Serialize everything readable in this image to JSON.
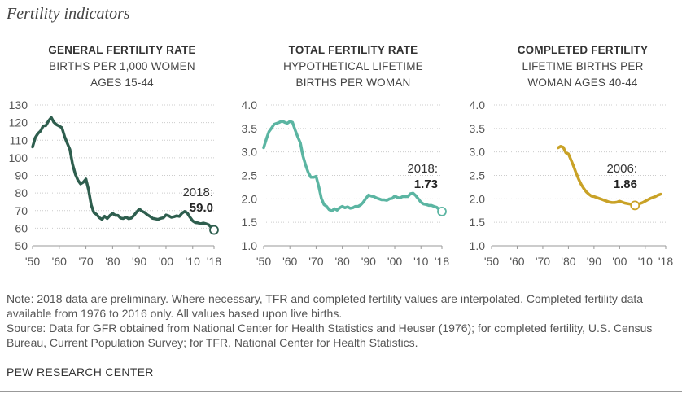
{
  "page_title": "Fertility indicators",
  "chart_data": [
    {
      "type": "line",
      "title": "GENERAL FERTILITY RATE",
      "subtitle_lines": [
        "BIRTHS PER 1,000 WOMEN",
        "AGES 15-44"
      ],
      "color": "#2e5e4e",
      "ylim": [
        50,
        130
      ],
      "yticks": [
        50,
        60,
        70,
        80,
        90,
        100,
        110,
        120,
        130
      ],
      "ytick_labels": [
        "50",
        "60",
        "70",
        "80",
        "90",
        "100",
        "110",
        "120",
        "130"
      ],
      "xlim": [
        1950,
        2018
      ],
      "xticks": [
        1950,
        1960,
        1970,
        1980,
        1990,
        2000,
        2010,
        2018
      ],
      "xtick_labels": [
        "'50",
        "'60",
        "'70",
        "'80",
        "'90",
        "'00",
        "'10",
        "'18"
      ],
      "grid": true,
      "x": [
        1950,
        1951,
        1952,
        1953,
        1954,
        1955,
        1956,
        1957,
        1958,
        1959,
        1960,
        1961,
        1962,
        1963,
        1964,
        1965,
        1966,
        1967,
        1968,
        1969,
        1970,
        1971,
        1972,
        1973,
        1974,
        1975,
        1976,
        1977,
        1978,
        1979,
        1980,
        1981,
        1982,
        1983,
        1984,
        1985,
        1986,
        1987,
        1988,
        1989,
        1990,
        1991,
        1992,
        1993,
        1994,
        1995,
        1996,
        1997,
        1998,
        1999,
        2000,
        2001,
        2002,
        2003,
        2004,
        2005,
        2006,
        2007,
        2008,
        2009,
        2010,
        2011,
        2012,
        2013,
        2014,
        2015,
        2016,
        2017,
        2018
      ],
      "y": [
        106.2,
        111.4,
        113.8,
        115.2,
        118.1,
        118.3,
        121.0,
        122.9,
        120.2,
        118.8,
        118.0,
        117.1,
        112.0,
        108.3,
        104.7,
        96.3,
        90.8,
        87.2,
        85.2,
        86.1,
        87.9,
        81.6,
        73.1,
        68.8,
        67.8,
        66.0,
        65.0,
        66.8,
        65.5,
        67.2,
        68.4,
        67.3,
        67.3,
        65.7,
        65.5,
        66.3,
        65.4,
        65.7,
        67.3,
        69.2,
        70.9,
        69.6,
        68.9,
        67.6,
        66.7,
        65.6,
        65.3,
        65.0,
        65.6,
        65.9,
        67.5,
        67.0,
        66.2,
        66.5,
        67.0,
        66.7,
        68.5,
        69.5,
        68.6,
        66.2,
        64.1,
        63.2,
        63.0,
        62.5,
        62.9,
        62.5,
        62.0,
        60.3,
        59.0
      ],
      "endpoint": {
        "x": 2018,
        "y": 59.0
      },
      "annotation_year": "2018:",
      "annotation_value": "59.0"
    },
    {
      "type": "line",
      "title": "TOTAL FERTILITY RATE",
      "subtitle_lines": [
        "HYPOTHETICAL LIFETIME",
        "BIRTHS PER WOMAN"
      ],
      "color": "#5bb5a2",
      "ylim": [
        1.0,
        4.0
      ],
      "yticks": [
        1.0,
        1.5,
        2.0,
        2.5,
        3.0,
        3.5,
        4.0
      ],
      "ytick_labels": [
        "1.0",
        "1.5",
        "2.0",
        "2.5",
        "3.0",
        "3.5",
        "4.0"
      ],
      "xlim": [
        1950,
        2018
      ],
      "xticks": [
        1950,
        1960,
        1970,
        1980,
        1990,
        2000,
        2010,
        2018
      ],
      "xtick_labels": [
        "'50",
        "'60",
        "'70",
        "'80",
        "'90",
        "'00",
        "'10",
        "'18"
      ],
      "grid": true,
      "x": [
        1950,
        1951,
        1952,
        1953,
        1954,
        1955,
        1956,
        1957,
        1958,
        1959,
        1960,
        1961,
        1962,
        1963,
        1964,
        1965,
        1966,
        1967,
        1968,
        1969,
        1970,
        1971,
        1972,
        1973,
        1974,
        1975,
        1976,
        1977,
        1978,
        1979,
        1980,
        1981,
        1982,
        1983,
        1984,
        1985,
        1986,
        1987,
        1988,
        1989,
        1990,
        1991,
        1992,
        1993,
        1994,
        1995,
        1996,
        1997,
        1998,
        1999,
        2000,
        2001,
        2002,
        2003,
        2004,
        2005,
        2006,
        2007,
        2008,
        2009,
        2010,
        2011,
        2012,
        2013,
        2014,
        2015,
        2016,
        2017,
        2018
      ],
      "y": [
        3.09,
        3.27,
        3.43,
        3.51,
        3.59,
        3.61,
        3.63,
        3.66,
        3.63,
        3.61,
        3.65,
        3.63,
        3.47,
        3.32,
        3.19,
        2.91,
        2.72,
        2.56,
        2.46,
        2.46,
        2.48,
        2.27,
        2.01,
        1.88,
        1.84,
        1.77,
        1.74,
        1.79,
        1.76,
        1.81,
        1.84,
        1.81,
        1.83,
        1.8,
        1.81,
        1.84,
        1.84,
        1.87,
        1.93,
        2.01,
        2.08,
        2.06,
        2.05,
        2.02,
        2.0,
        1.98,
        1.98,
        1.97,
        2.0,
        2.01,
        2.06,
        2.03,
        2.02,
        2.05,
        2.05,
        2.05,
        2.11,
        2.12,
        2.07,
        2.0,
        1.93,
        1.89,
        1.88,
        1.86,
        1.86,
        1.84,
        1.82,
        1.77,
        1.73
      ],
      "endpoint": {
        "x": 2018,
        "y": 1.73
      },
      "annotation_year": "2018:",
      "annotation_value": "1.73"
    },
    {
      "type": "line",
      "title": "COMPLETED FERTILITY",
      "subtitle_lines": [
        "LIFETIME BIRTHS PER",
        "WOMAN AGES 40-44"
      ],
      "color": "#c9a227",
      "ylim": [
        1.0,
        4.0
      ],
      "yticks": [
        1.0,
        1.5,
        2.0,
        2.5,
        3.0,
        3.5,
        4.0
      ],
      "ytick_labels": [
        "1.0",
        "1.5",
        "2.0",
        "2.5",
        "3.0",
        "3.5",
        "4.0"
      ],
      "xlim": [
        1950,
        2018
      ],
      "xticks": [
        1950,
        1960,
        1970,
        1980,
        1990,
        2000,
        2010,
        2018
      ],
      "xtick_labels": [
        "'50",
        "'60",
        "'70",
        "'80",
        "'90",
        "'00",
        "'10",
        "'18"
      ],
      "grid": true,
      "x": [
        1976,
        1977,
        1978,
        1979,
        1980,
        1981,
        1982,
        1983,
        1984,
        1985,
        1986,
        1987,
        1988,
        1989,
        1990,
        1991,
        1992,
        1993,
        1994,
        1995,
        1996,
        1997,
        1998,
        1999,
        2000,
        2001,
        2002,
        2003,
        2004,
        2005,
        2006,
        2007,
        2008,
        2009,
        2010,
        2011,
        2012,
        2013,
        2014,
        2015,
        2016
      ],
      "y": [
        3.09,
        3.12,
        3.1,
        2.98,
        2.96,
        2.83,
        2.7,
        2.55,
        2.42,
        2.31,
        2.22,
        2.15,
        2.1,
        2.06,
        2.05,
        2.03,
        2.01,
        1.99,
        1.97,
        1.95,
        1.93,
        1.92,
        1.92,
        1.93,
        1.95,
        1.93,
        1.91,
        1.9,
        1.89,
        1.88,
        1.86,
        1.88,
        1.9,
        1.92,
        1.95,
        1.98,
        2.01,
        2.03,
        2.05,
        2.08,
        2.1
      ],
      "endpoint": {
        "x": 2006,
        "y": 1.86
      },
      "annotation_year": "2006:",
      "annotation_value": "1.86"
    }
  ],
  "note_lines": [
    "Note: 2018 data are preliminary. Where necessary, TFR and completed fertility values are interpolated. Completed fertility data",
    "available from 1976 to 2016 only. All values based upon live births.",
    "Source: Data for GFR obtained from National Center for Health Statistics and Heuser (1976); for completed fertility, U.S. Census",
    "Bureau, Current Population Survey; for TFR, National Center for Health Statistics."
  ],
  "brand": "PEW RESEARCH CENTER"
}
